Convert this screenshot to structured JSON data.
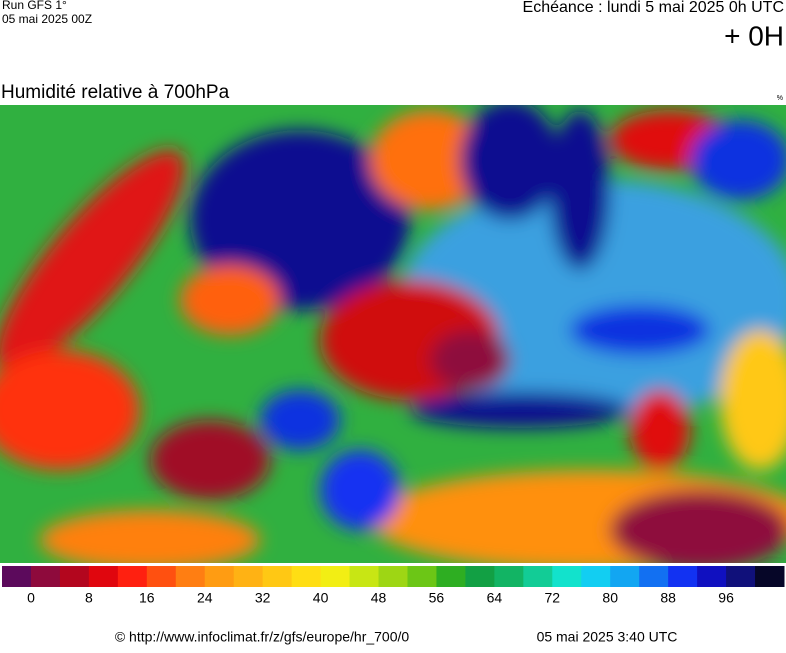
{
  "header": {
    "run": "Run GFS 1°",
    "date": "05 mai 2025 00Z",
    "echeance": "Echéance : lundi 5 mai 2025 0h UTC",
    "lead": "+ 0H"
  },
  "title": "Humidité relative à 700hPa",
  "unit": "%",
  "legend": {
    "labels": [
      0,
      8,
      16,
      24,
      32,
      40,
      48,
      56,
      64,
      72,
      80,
      88,
      96
    ],
    "colors": [
      "#5c0a5c",
      "#8e0a3c",
      "#b3061e",
      "#e0060e",
      "#ff2010",
      "#ff5010",
      "#ff7e12",
      "#ff9c12",
      "#ffb214",
      "#ffc814",
      "#ffde14",
      "#f2ee14",
      "#c8e614",
      "#9ed614",
      "#6cc616",
      "#2eae22",
      "#12a044",
      "#12b464",
      "#12cc96",
      "#12e2cc",
      "#12cef2",
      "#12a6f2",
      "#1270f2",
      "#1232f2",
      "#1010c0",
      "#10107a",
      "#060628"
    ]
  },
  "footer": {
    "source": "© http://www.infoclimat.fr/z/gfs/europe/hr_700/0",
    "time": "05 mai 2025  3:40 UTC"
  }
}
